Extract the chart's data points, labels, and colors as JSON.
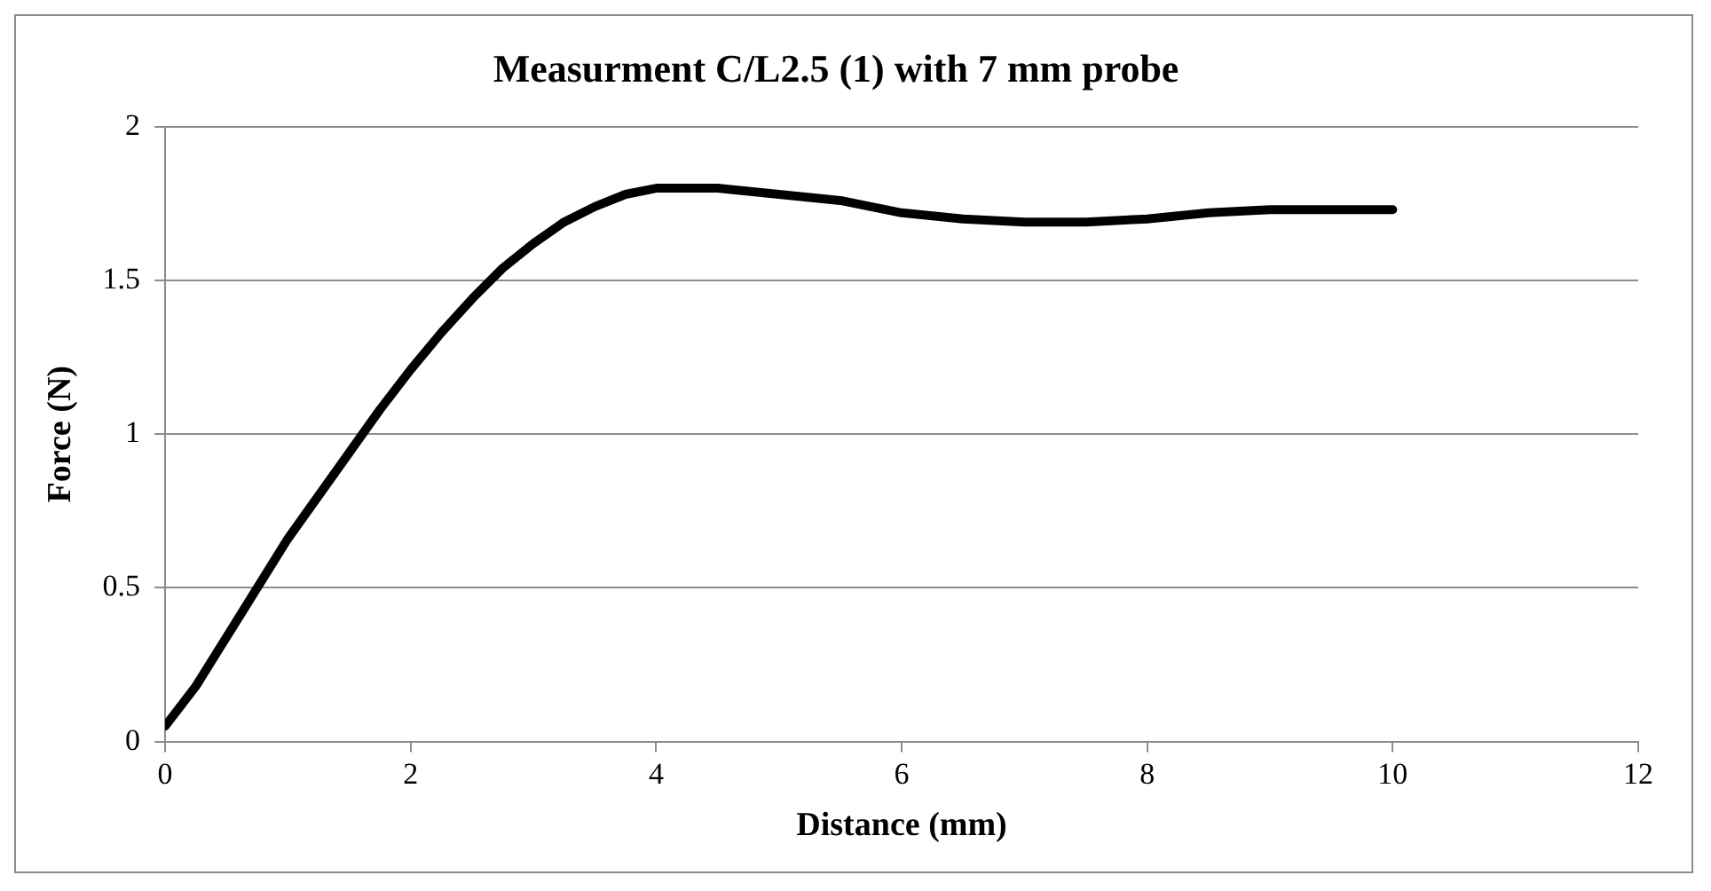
{
  "chart_data": {
    "type": "line",
    "title": "Measurment C/L2.5 (1) with 7 mm probe",
    "xlabel": "Distance (mm)",
    "ylabel": "Force (N)",
    "series": [
      {
        "color": "#000000",
        "x": [
          0,
          0.25,
          0.5,
          0.75,
          1,
          1.25,
          1.5,
          1.75,
          2,
          2.25,
          2.5,
          2.75,
          3,
          3.25,
          3.5,
          3.75,
          4,
          4.5,
          5,
          5.5,
          6,
          6.5,
          7,
          7.5,
          8,
          8.5,
          9,
          9.5,
          10
        ],
        "values": [
          0.05,
          0.18,
          0.34,
          0.5,
          0.66,
          0.8,
          0.94,
          1.08,
          1.21,
          1.33,
          1.44,
          1.54,
          1.62,
          1.69,
          1.74,
          1.78,
          1.8,
          1.8,
          1.78,
          1.76,
          1.72,
          1.7,
          1.69,
          1.69,
          1.7,
          1.72,
          1.73,
          1.73,
          1.73
        ]
      }
    ],
    "xlim": [
      0,
      12
    ],
    "xticks": [
      0,
      2,
      4,
      6,
      8,
      10,
      12
    ],
    "ylim": [
      0,
      2
    ],
    "yticks": [
      0,
      0.5,
      1,
      1.5,
      2
    ],
    "grid": "y",
    "legend": false,
    "marker": "none",
    "line_style": "solid"
  }
}
